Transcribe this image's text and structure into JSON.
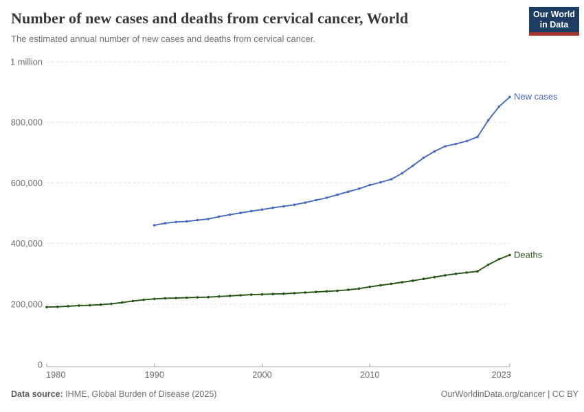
{
  "header": {
    "title": "Number of new cases and deaths from cervical cancer, World",
    "subtitle": "The estimated annual number of new cases and deaths from cervical cancer.",
    "logo_line1": "Our World",
    "logo_line2": "in Data"
  },
  "colors": {
    "new_cases": "#4669c3",
    "deaths": "#265414",
    "logo_navy": "#1d3d63",
    "logo_red": "#a8342c",
    "grid": "#dcdcdc",
    "axis_text": "#6e6e6e"
  },
  "chart_data": {
    "type": "line",
    "title": "Number of new cases and deaths from cervical cancer, World",
    "xlabel": "",
    "ylabel": "",
    "x_axis": {
      "min": 1980,
      "max": 2023,
      "tick_years": [
        1980,
        1990,
        2000,
        2010,
        2023
      ],
      "tick_labels": [
        "1980",
        "1990",
        "2000",
        "2010",
        "2023"
      ]
    },
    "y_axis": {
      "min": 0,
      "max": 1000000,
      "tick_values": [
        0,
        200000,
        400000,
        600000,
        800000,
        1000000
      ],
      "tick_labels": [
        "0",
        "200,000",
        "400,000",
        "600,000",
        "800,000",
        "1 million"
      ]
    },
    "grid": "horizontal-dashed",
    "legend_position": "end-of-line-labels",
    "series": [
      {
        "name": "New cases",
        "color": "#4669c3",
        "start_year": 1990,
        "values": [
          460000,
          467000,
          471000,
          473000,
          477000,
          481000,
          489000,
          495000,
          501000,
          507000,
          512000,
          518000,
          523000,
          528000,
          535000,
          543000,
          551000,
          561000,
          571000,
          581000,
          593000,
          602000,
          612000,
          632000,
          657000,
          683000,
          704000,
          721000,
          729000,
          738000,
          752000,
          807000,
          852000,
          884000
        ]
      },
      {
        "name": "Deaths",
        "color": "#265414",
        "start_year": 1980,
        "values": [
          190000,
          191000,
          193000,
          195000,
          196000,
          198000,
          201000,
          205000,
          210000,
          214000,
          217000,
          219000,
          220000,
          221000,
          222000,
          223000,
          225000,
          227000,
          229000,
          231000,
          232000,
          233000,
          234000,
          236000,
          238000,
          240000,
          242000,
          244000,
          247000,
          251000,
          257000,
          262000,
          267000,
          272000,
          277000,
          283000,
          289000,
          295000,
          300000,
          304000,
          308000,
          330000,
          348000,
          362000
        ]
      }
    ]
  },
  "footer": {
    "source_label": "Data source:",
    "source_text": " IHME, Global Burden of Disease (2025)",
    "right_text": "OurWorldinData.org/cancer | CC BY"
  }
}
